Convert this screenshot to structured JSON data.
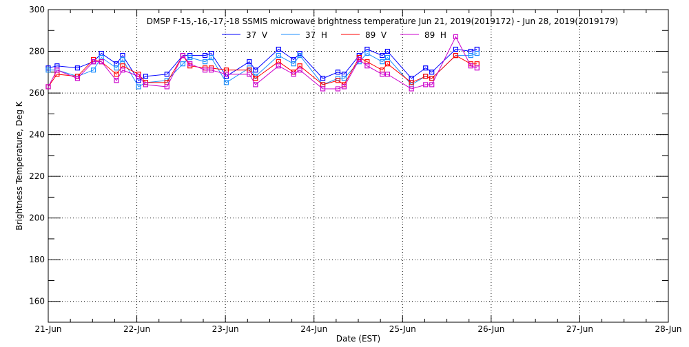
{
  "chart_data": {
    "type": "line",
    "title": "DMSP F-15,-16,-17,-18 SSMIS microwave brightness temperature Jun 21, 2019(2019172) - Jun 28, 2019(2019179)",
    "xlabel": "Date (EST)",
    "ylabel": "Brightness Temperature, Deg K",
    "xlim": [
      0,
      7
    ],
    "ylim": [
      150,
      300
    ],
    "x_unit": "days since Jun 21",
    "x_tick_labels": [
      "21-Jun",
      "22-Jun",
      "23-Jun",
      "24-Jun",
      "25-Jun",
      "26-Jun",
      "27-Jun",
      "28-Jun"
    ],
    "y_ticks": [
      160,
      180,
      200,
      220,
      240,
      260,
      280,
      300
    ],
    "grid": true,
    "legend_placement": "top-center",
    "x": [
      0,
      0.1,
      0.33,
      0.51,
      0.6,
      0.77,
      0.84,
      1.02,
      1.1,
      1.34,
      1.52,
      1.6,
      1.77,
      1.84,
      2.01,
      2.27,
      2.34,
      2.6,
      2.77,
      2.84,
      3.1,
      3.27,
      3.34,
      3.51,
      3.6,
      3.77,
      3.83,
      4.1,
      4.26,
      4.33,
      4.6,
      4.77,
      4.84
    ],
    "series": [
      {
        "name": "37 V",
        "color": "#0000ff",
        "values": [
          272,
          273,
          272,
          275,
          279,
          274,
          278,
          266,
          268,
          269,
          278,
          278,
          278,
          279,
          268,
          275,
          271,
          281,
          276,
          279,
          267,
          270,
          269,
          278,
          281,
          278,
          280,
          267,
          272,
          270,
          281,
          280,
          281
        ]
      },
      {
        "name": "37 H",
        "color": "#1e8fff",
        "values": [
          271,
          271,
          268,
          271,
          277,
          272,
          276,
          263,
          265,
          266,
          274,
          277,
          275,
          277,
          265,
          272,
          268,
          278,
          274,
          278,
          264,
          267,
          267,
          275,
          279,
          275,
          277,
          264,
          268,
          267,
          278,
          278,
          279
        ]
      },
      {
        "name": "89 V",
        "color": "#ff0000",
        "values": [
          263,
          269,
          268,
          276,
          275,
          269,
          273,
          269,
          265,
          265,
          278,
          273,
          272,
          272,
          271,
          271,
          267,
          275,
          270,
          273,
          264,
          266,
          264,
          277,
          275,
          271,
          274,
          265,
          268,
          267,
          278,
          274,
          274
        ]
      },
      {
        "name": "89 H",
        "color": "#cc00cc",
        "values": [
          263,
          271,
          267,
          275,
          275,
          266,
          271,
          268,
          264,
          263,
          278,
          274,
          271,
          271,
          269,
          269,
          264,
          273,
          269,
          271,
          262,
          262,
          263,
          276,
          273,
          269,
          269,
          262,
          264,
          264,
          287,
          273,
          272
        ]
      }
    ]
  }
}
